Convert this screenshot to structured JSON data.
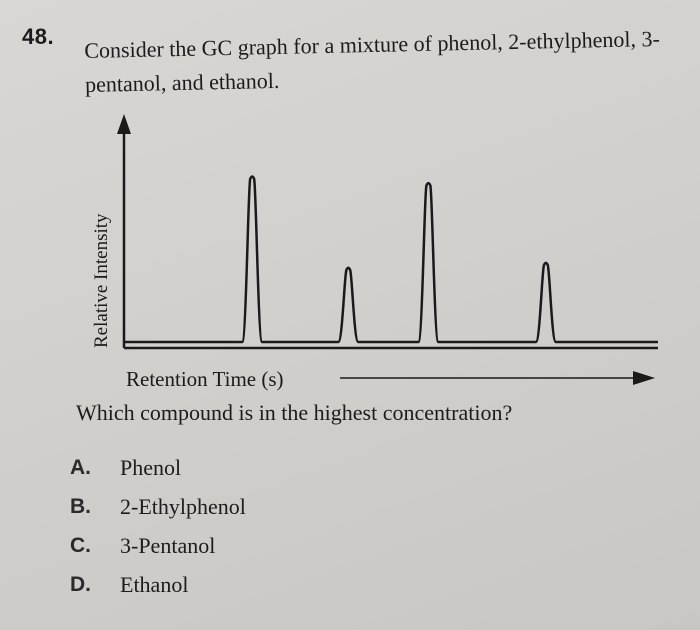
{
  "question": {
    "number": "48.",
    "stem": "Consider the GC graph for a mixture of phenol, 2-ethylphenol, 3-pentanol, and ethanol.",
    "prompt": "Which compound is in the highest concentration?"
  },
  "graph": {
    "ylabel": "Relative Intensity",
    "xlabel": "Retention Time (s)"
  },
  "options": [
    {
      "letter": "A.",
      "text": "Phenol"
    },
    {
      "letter": "B.",
      "text": "2-Ethylphenol"
    },
    {
      "letter": "C.",
      "text": "3-Pentanol"
    },
    {
      "letter": "D.",
      "text": "Ethanol"
    }
  ],
  "chart_data": {
    "type": "line",
    "series": [
      {
        "peak_retention_fraction": 0.24,
        "relative_height": 1.0
      },
      {
        "peak_retention_fraction": 0.42,
        "relative_height": 0.45
      },
      {
        "peak_retention_fraction": 0.57,
        "relative_height": 0.96
      },
      {
        "peak_retention_fraction": 0.79,
        "relative_height": 0.48
      }
    ],
    "colors": {
      "line": "#1a1a1a"
    }
  }
}
